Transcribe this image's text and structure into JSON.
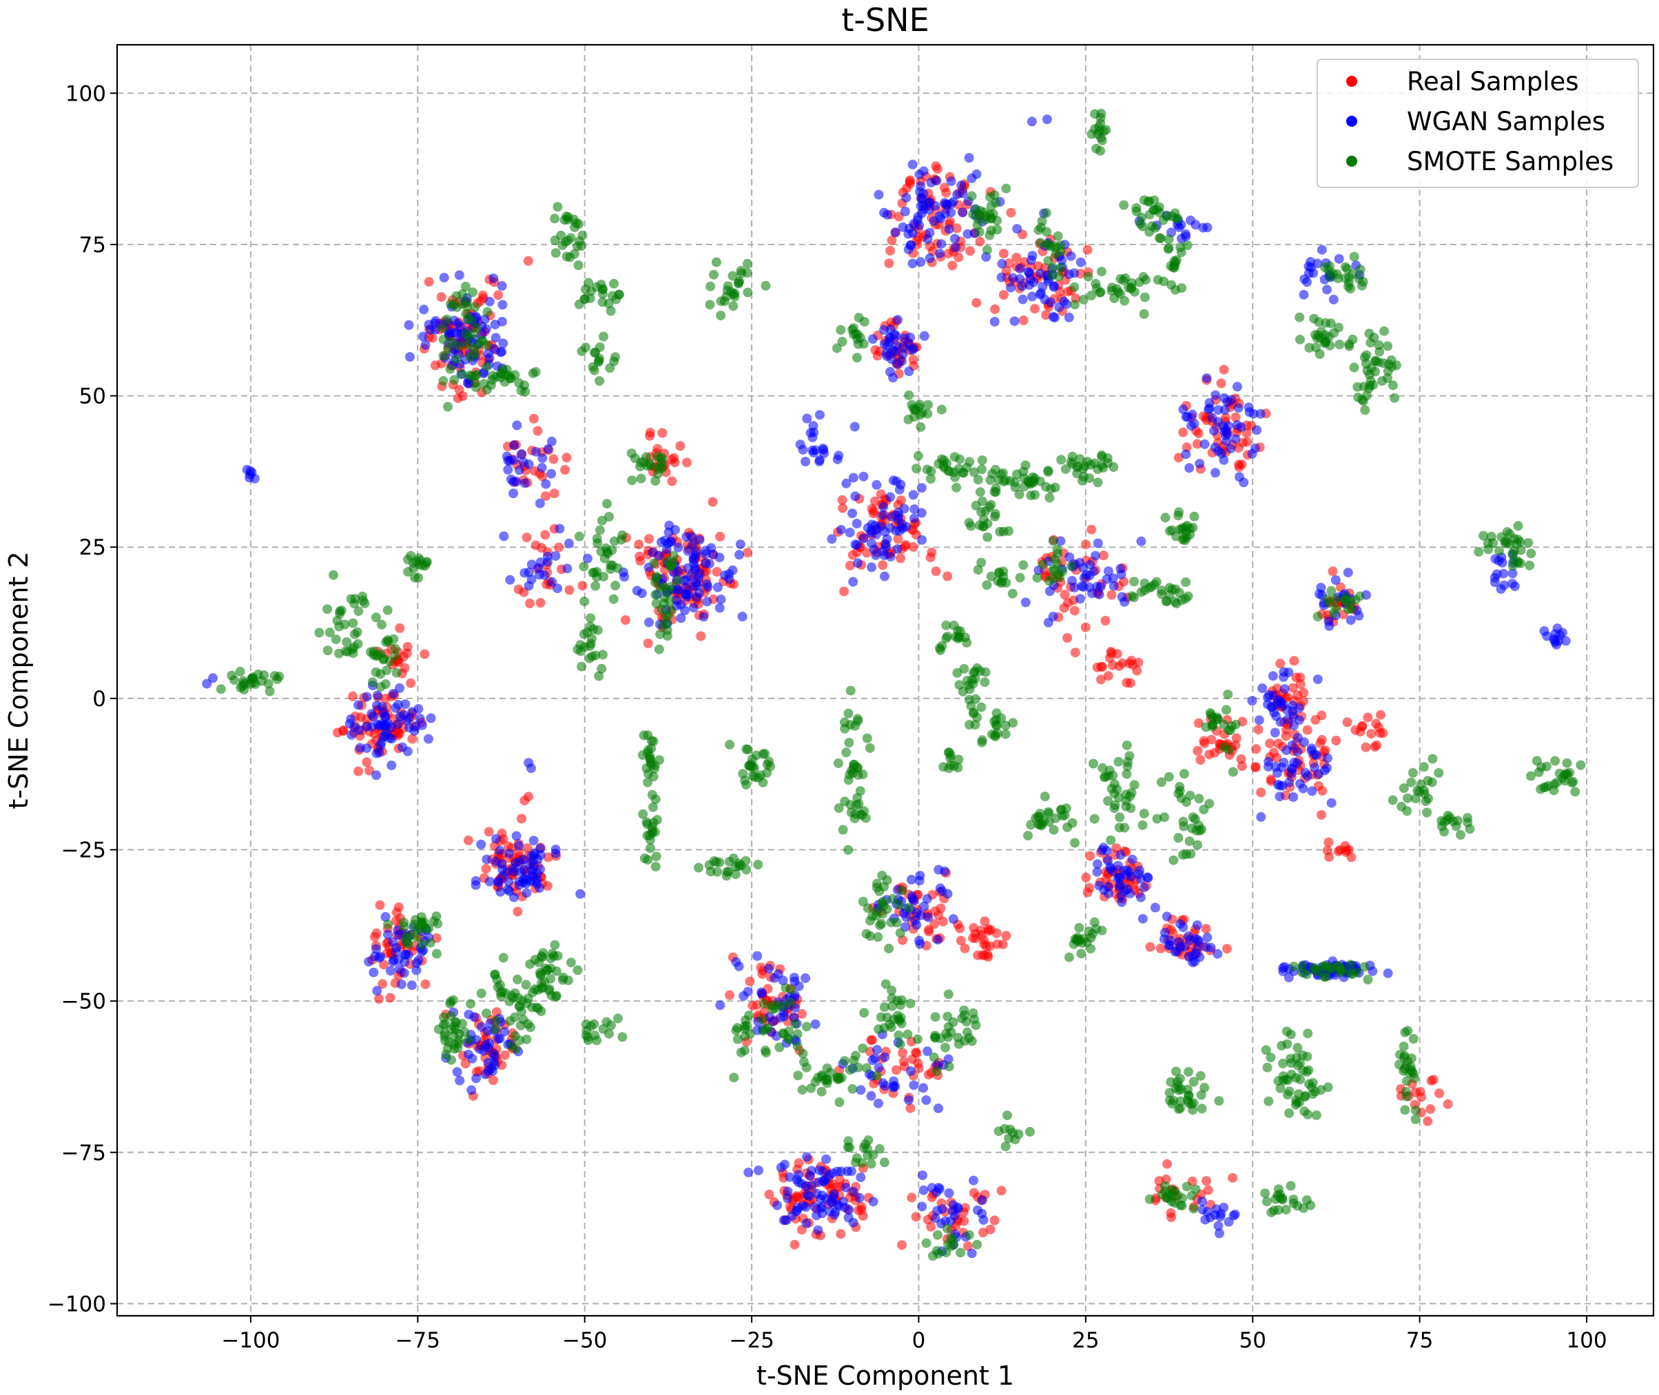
{
  "chart_data": {
    "type": "scatter",
    "title": "t-SNE",
    "xlabel": "t-SNE Component 1",
    "ylabel": "t-SNE Component 2",
    "xlim": [
      -120,
      110
    ],
    "ylim": [
      -102,
      108
    ],
    "xticks": [
      -100,
      -75,
      -50,
      -25,
      0,
      25,
      50,
      75,
      100
    ],
    "yticks": [
      -100,
      -75,
      -50,
      -25,
      0,
      25,
      50,
      75,
      100
    ],
    "xtick_labels": [
      "−100",
      "−75",
      "−50",
      "−25",
      "0",
      "25",
      "50",
      "75",
      "100"
    ],
    "ytick_labels": [
      "−100",
      "−75",
      "−50",
      "−25",
      "0",
      "25",
      "50",
      "75",
      "100"
    ],
    "grid": true,
    "legend_position": "top-right",
    "series": [
      {
        "name": "Real Samples",
        "color": "#ff0000",
        "clusters": [
          [
            -68,
            60,
            6,
            7,
            80
          ],
          [
            -58,
            38,
            4,
            5,
            24
          ],
          [
            -80,
            -4,
            5,
            5,
            60
          ],
          [
            -78,
            8,
            3,
            4,
            16
          ],
          [
            -56,
            22,
            5,
            6,
            20
          ],
          [
            -60,
            -28,
            5,
            5,
            60
          ],
          [
            -65,
            -58,
            4,
            5,
            40
          ],
          [
            -78,
            -42,
            4,
            6,
            40
          ],
          [
            -35,
            20,
            7,
            7,
            90
          ],
          [
            -38,
            40,
            3,
            3,
            20
          ],
          [
            -22,
            -50,
            5,
            6,
            40
          ],
          [
            -15,
            -82,
            6,
            5,
            70
          ],
          [
            -5,
            28,
            6,
            6,
            60
          ],
          [
            -3,
            58,
            3,
            4,
            30
          ],
          [
            2,
            80,
            6,
            7,
            70
          ],
          [
            18,
            70,
            6,
            6,
            50
          ],
          [
            0,
            -35,
            5,
            5,
            35
          ],
          [
            10,
            -40,
            3,
            3,
            25
          ],
          [
            -3,
            -62,
            6,
            5,
            30
          ],
          [
            5,
            -85,
            5,
            4,
            30
          ],
          [
            25,
            20,
            6,
            6,
            40
          ],
          [
            30,
            -30,
            4,
            4,
            40
          ],
          [
            40,
            -40,
            4,
            3,
            30
          ],
          [
            45,
            45,
            5,
            6,
            50
          ],
          [
            57,
            -12,
            5,
            6,
            40
          ],
          [
            55,
            0,
            4,
            4,
            30
          ],
          [
            63,
            16,
            3,
            3,
            20
          ],
          [
            68,
            -5,
            3,
            3,
            15
          ],
          [
            46,
            -8,
            4,
            4,
            30
          ],
          [
            30,
            5,
            4,
            3,
            20
          ],
          [
            -58,
            -17,
            1,
            1,
            2
          ],
          [
            40,
            -82,
            5,
            3,
            20
          ],
          [
            75,
            -65,
            3,
            3,
            15
          ],
          [
            62,
            -25,
            3,
            1,
            10
          ]
        ]
      },
      {
        "name": "WGAN Samples",
        "color": "#0000ff",
        "clusters": [
          [
            -68,
            60,
            6,
            7,
            80
          ],
          [
            -58,
            38,
            4,
            5,
            24
          ],
          [
            -80,
            -4,
            5,
            5,
            60
          ],
          [
            -100,
            37,
            1,
            1,
            6
          ],
          [
            -106,
            3,
            1,
            1,
            2
          ],
          [
            -56,
            22,
            5,
            6,
            20
          ],
          [
            -60,
            -28,
            5,
            5,
            60
          ],
          [
            -65,
            -58,
            4,
            5,
            40
          ],
          [
            -78,
            -42,
            4,
            6,
            40
          ],
          [
            -35,
            20,
            7,
            7,
            90
          ],
          [
            -22,
            -50,
            5,
            6,
            40
          ],
          [
            -15,
            -82,
            6,
            5,
            70
          ],
          [
            -5,
            28,
            6,
            6,
            60
          ],
          [
            -3,
            58,
            3,
            4,
            30
          ],
          [
            2,
            80,
            6,
            7,
            70
          ],
          [
            18,
            70,
            6,
            6,
            50
          ],
          [
            0,
            -35,
            5,
            5,
            35
          ],
          [
            -3,
            -62,
            6,
            5,
            30
          ],
          [
            5,
            -85,
            5,
            4,
            30
          ],
          [
            25,
            20,
            6,
            6,
            40
          ],
          [
            30,
            -30,
            4,
            4,
            40
          ],
          [
            40,
            -40,
            4,
            3,
            30
          ],
          [
            45,
            45,
            5,
            6,
            50
          ],
          [
            57,
            -12,
            5,
            6,
            40
          ],
          [
            55,
            0,
            4,
            4,
            30
          ],
          [
            63,
            16,
            3,
            3,
            20
          ],
          [
            62,
            -45,
            6,
            1,
            60
          ],
          [
            95,
            10,
            2,
            2,
            12
          ],
          [
            18,
            96,
            1,
            1,
            2
          ],
          [
            -58,
            -11,
            1,
            1,
            2
          ],
          [
            45,
            -85,
            3,
            2,
            15
          ],
          [
            -15,
            43,
            3,
            4,
            20
          ],
          [
            88,
            20,
            3,
            3,
            15
          ],
          [
            38,
            78,
            4,
            2,
            15
          ],
          [
            60,
            70,
            4,
            4,
            20
          ]
        ]
      },
      {
        "name": "SMOTE Samples",
        "color": "#007a00",
        "clusters": [
          [
            -68,
            60,
            3,
            7,
            40
          ],
          [
            -62,
            53,
            6,
            2,
            30
          ],
          [
            -52,
            76,
            2,
            4,
            25
          ],
          [
            -48,
            67,
            3,
            2,
            20
          ],
          [
            -48,
            56,
            2,
            3,
            15
          ],
          [
            -86,
            12,
            3,
            6,
            30
          ],
          [
            -80,
            8,
            2,
            6,
            25
          ],
          [
            -100,
            3,
            4,
            2,
            25
          ],
          [
            -75,
            22,
            2,
            2,
            15
          ],
          [
            -40,
            38,
            2,
            3,
            20
          ],
          [
            -47,
            24,
            3,
            6,
            30
          ],
          [
            -49,
            8,
            2,
            4,
            20
          ],
          [
            -38,
            18,
            2,
            10,
            30
          ],
          [
            -28,
            68,
            3,
            4,
            25
          ],
          [
            -10,
            60,
            2,
            3,
            15
          ],
          [
            -40,
            -10,
            1,
            4,
            20
          ],
          [
            -40,
            -22,
            1,
            4,
            20
          ],
          [
            -25,
            -12,
            3,
            3,
            25
          ],
          [
            -10,
            -12,
            2,
            10,
            40
          ],
          [
            -28,
            -28,
            4,
            2,
            20
          ],
          [
            -60,
            -50,
            4,
            6,
            50
          ],
          [
            -70,
            -55,
            2,
            5,
            30
          ],
          [
            -55,
            -45,
            3,
            5,
            30
          ],
          [
            -75,
            -38,
            3,
            3,
            25
          ],
          [
            -48,
            -55,
            3,
            2,
            15
          ],
          [
            -22,
            -55,
            5,
            5,
            40
          ],
          [
            -13,
            -62,
            5,
            3,
            30
          ],
          [
            -8,
            -75,
            3,
            2,
            15
          ],
          [
            -4,
            -52,
            3,
            3,
            25
          ],
          [
            5,
            -55,
            4,
            4,
            30
          ],
          [
            -5,
            -35,
            3,
            5,
            30
          ],
          [
            5,
            -90,
            3,
            2,
            15
          ],
          [
            0,
            48,
            2,
            2,
            15
          ],
          [
            5,
            38,
            4,
            2,
            25
          ],
          [
            15,
            36,
            6,
            2,
            40
          ],
          [
            25,
            38,
            4,
            2,
            25
          ],
          [
            10,
            30,
            3,
            3,
            20
          ],
          [
            5,
            10,
            2,
            2,
            15
          ],
          [
            8,
            2,
            2,
            5,
            25
          ],
          [
            12,
            -5,
            2,
            2,
            15
          ],
          [
            10,
            80,
            2,
            4,
            25
          ],
          [
            20,
            75,
            2,
            4,
            20
          ],
          [
            27,
            94,
            1,
            3,
            15
          ],
          [
            30,
            68,
            4,
            3,
            30
          ],
          [
            35,
            80,
            3,
            2,
            25
          ],
          [
            38,
            72,
            2,
            4,
            20
          ],
          [
            40,
            28,
            3,
            2,
            20
          ],
          [
            30,
            -15,
            3,
            6,
            35
          ],
          [
            20,
            -20,
            3,
            3,
            25
          ],
          [
            40,
            -20,
            3,
            6,
            30
          ],
          [
            45,
            -5,
            2,
            4,
            20
          ],
          [
            25,
            -40,
            2,
            3,
            20
          ],
          [
            37,
            18,
            4,
            2,
            25
          ],
          [
            40,
            -65,
            3,
            4,
            30
          ],
          [
            38,
            -82,
            3,
            2,
            20
          ],
          [
            55,
            -83,
            3,
            2,
            20
          ],
          [
            55,
            -60,
            3,
            5,
            30
          ],
          [
            58,
            -65,
            2,
            4,
            20
          ],
          [
            62,
            -45,
            4,
            1,
            25
          ],
          [
            65,
            70,
            4,
            2,
            20
          ],
          [
            68,
            55,
            3,
            6,
            40
          ],
          [
            60,
            60,
            3,
            3,
            25
          ],
          [
            63,
            16,
            3,
            2,
            15
          ],
          [
            73,
            -60,
            1,
            6,
            25
          ],
          [
            75,
            -15,
            3,
            3,
            20
          ],
          [
            88,
            25,
            3,
            3,
            30
          ],
          [
            95,
            -13,
            4,
            2,
            25
          ],
          [
            80,
            -20,
            3,
            2,
            15
          ],
          [
            20,
            22,
            2,
            3,
            15
          ],
          [
            12,
            20,
            3,
            2,
            15
          ],
          [
            5,
            -10,
            1,
            2,
            10
          ],
          [
            14,
            -72,
            2,
            2,
            10
          ]
        ]
      }
    ]
  }
}
